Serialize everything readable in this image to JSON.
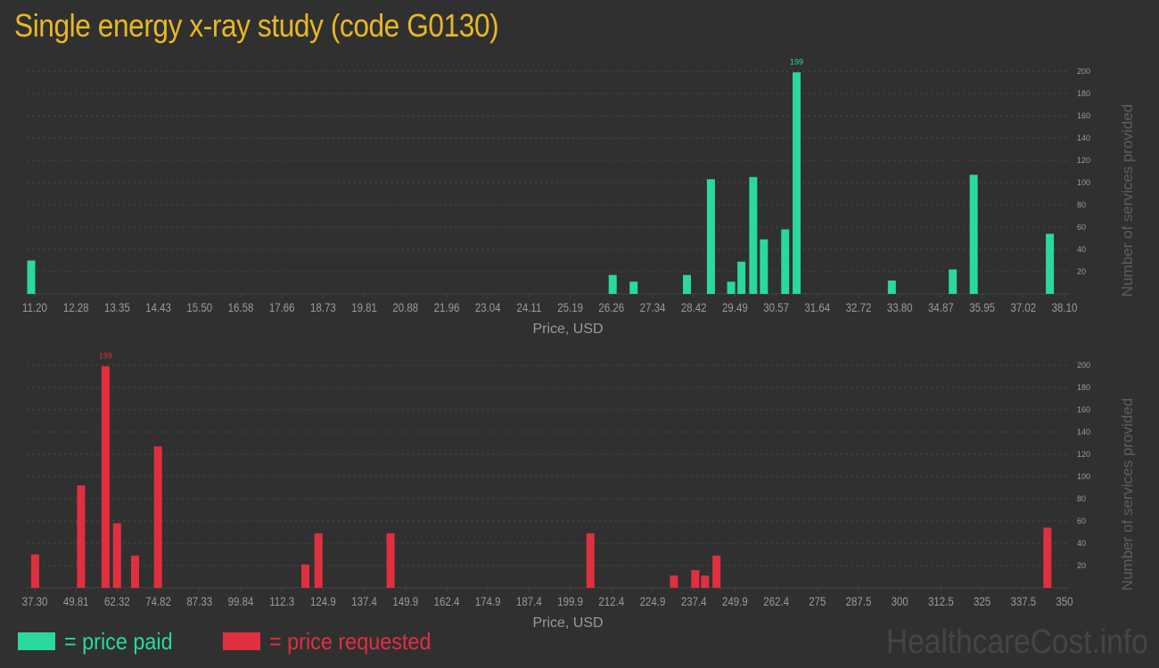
{
  "title": "Single energy x-ray study (code G0130)",
  "legend": {
    "paid_label": "= price paid",
    "requested_label": "= price requested",
    "paid_color": "#2ad8a0",
    "requested_color": "#e0303f"
  },
  "watermark": "HealthcareCost.info",
  "colors": {
    "background": "#303030",
    "grid": "#454545",
    "axis_text": "#9a9a9a",
    "title": "#e8b824"
  },
  "chart_data": [
    {
      "type": "bar",
      "name": "price paid",
      "color": "#2ad8a0",
      "xlabel": "Price, USD",
      "ylabel": "Number of services provided",
      "xlim": [
        11.2,
        38.1
      ],
      "ylim": [
        0,
        200
      ],
      "grid": true,
      "x_ticks": [
        "11.20",
        "12.28",
        "13.35",
        "14.43",
        "15.50",
        "16.58",
        "17.66",
        "18.73",
        "19.81",
        "20.88",
        "21.96",
        "23.04",
        "24.11",
        "25.19",
        "26.26",
        "27.34",
        "28.42",
        "29.49",
        "30.57",
        "31.64",
        "32.72",
        "33.80",
        "34.87",
        "35.95",
        "37.02",
        "38.10"
      ],
      "y_ticks": [
        20,
        40,
        60,
        80,
        100,
        120,
        140,
        160,
        180,
        200
      ],
      "bars": [
        {
          "x": 11.2,
          "y": 30
        },
        {
          "x": 26.47,
          "y": 17
        },
        {
          "x": 27.02,
          "y": 11
        },
        {
          "x": 28.42,
          "y": 17
        },
        {
          "x": 29.05,
          "y": 103
        },
        {
          "x": 29.58,
          "y": 11
        },
        {
          "x": 29.85,
          "y": 29
        },
        {
          "x": 30.16,
          "y": 105
        },
        {
          "x": 30.44,
          "y": 49
        },
        {
          "x": 31.0,
          "y": 58
        },
        {
          "x": 31.3,
          "y": 199
        },
        {
          "x": 33.8,
          "y": 12
        },
        {
          "x": 35.4,
          "y": 22
        },
        {
          "x": 35.95,
          "y": 107
        },
        {
          "x": 37.95,
          "y": 54
        }
      ],
      "max_label": "199"
    },
    {
      "type": "bar",
      "name": "price requested",
      "color": "#e0303f",
      "xlabel": "Price, USD",
      "ylabel": "Number of services provided",
      "xlim": [
        37.3,
        350
      ],
      "ylim": [
        0,
        200
      ],
      "grid": true,
      "x_ticks": [
        "37.30",
        "49.81",
        "62.32",
        "74.82",
        "87.33",
        "99.84",
        "112.3",
        "124.9",
        "137.4",
        "149.9",
        "162.4",
        "174.9",
        "187.4",
        "199.9",
        "212.4",
        "224.9",
        "237.4",
        "249.9",
        "262.4",
        "275",
        "287.5",
        "300",
        "312.5",
        "325",
        "337.5",
        "350"
      ],
      "y_ticks": [
        20,
        40,
        60,
        80,
        100,
        120,
        140,
        160,
        180,
        200
      ],
      "bars": [
        {
          "x": 38.5,
          "y": 30
        },
        {
          "x": 52.5,
          "y": 92
        },
        {
          "x": 60,
          "y": 199
        },
        {
          "x": 63.5,
          "y": 58
        },
        {
          "x": 69,
          "y": 29
        },
        {
          "x": 76,
          "y": 127
        },
        {
          "x": 121,
          "y": 21
        },
        {
          "x": 125,
          "y": 49
        },
        {
          "x": 147,
          "y": 49
        },
        {
          "x": 208,
          "y": 49
        },
        {
          "x": 233.5,
          "y": 11
        },
        {
          "x": 240,
          "y": 16
        },
        {
          "x": 243,
          "y": 11
        },
        {
          "x": 246.5,
          "y": 29
        },
        {
          "x": 347.5,
          "y": 54
        }
      ],
      "max_label": "199"
    }
  ]
}
